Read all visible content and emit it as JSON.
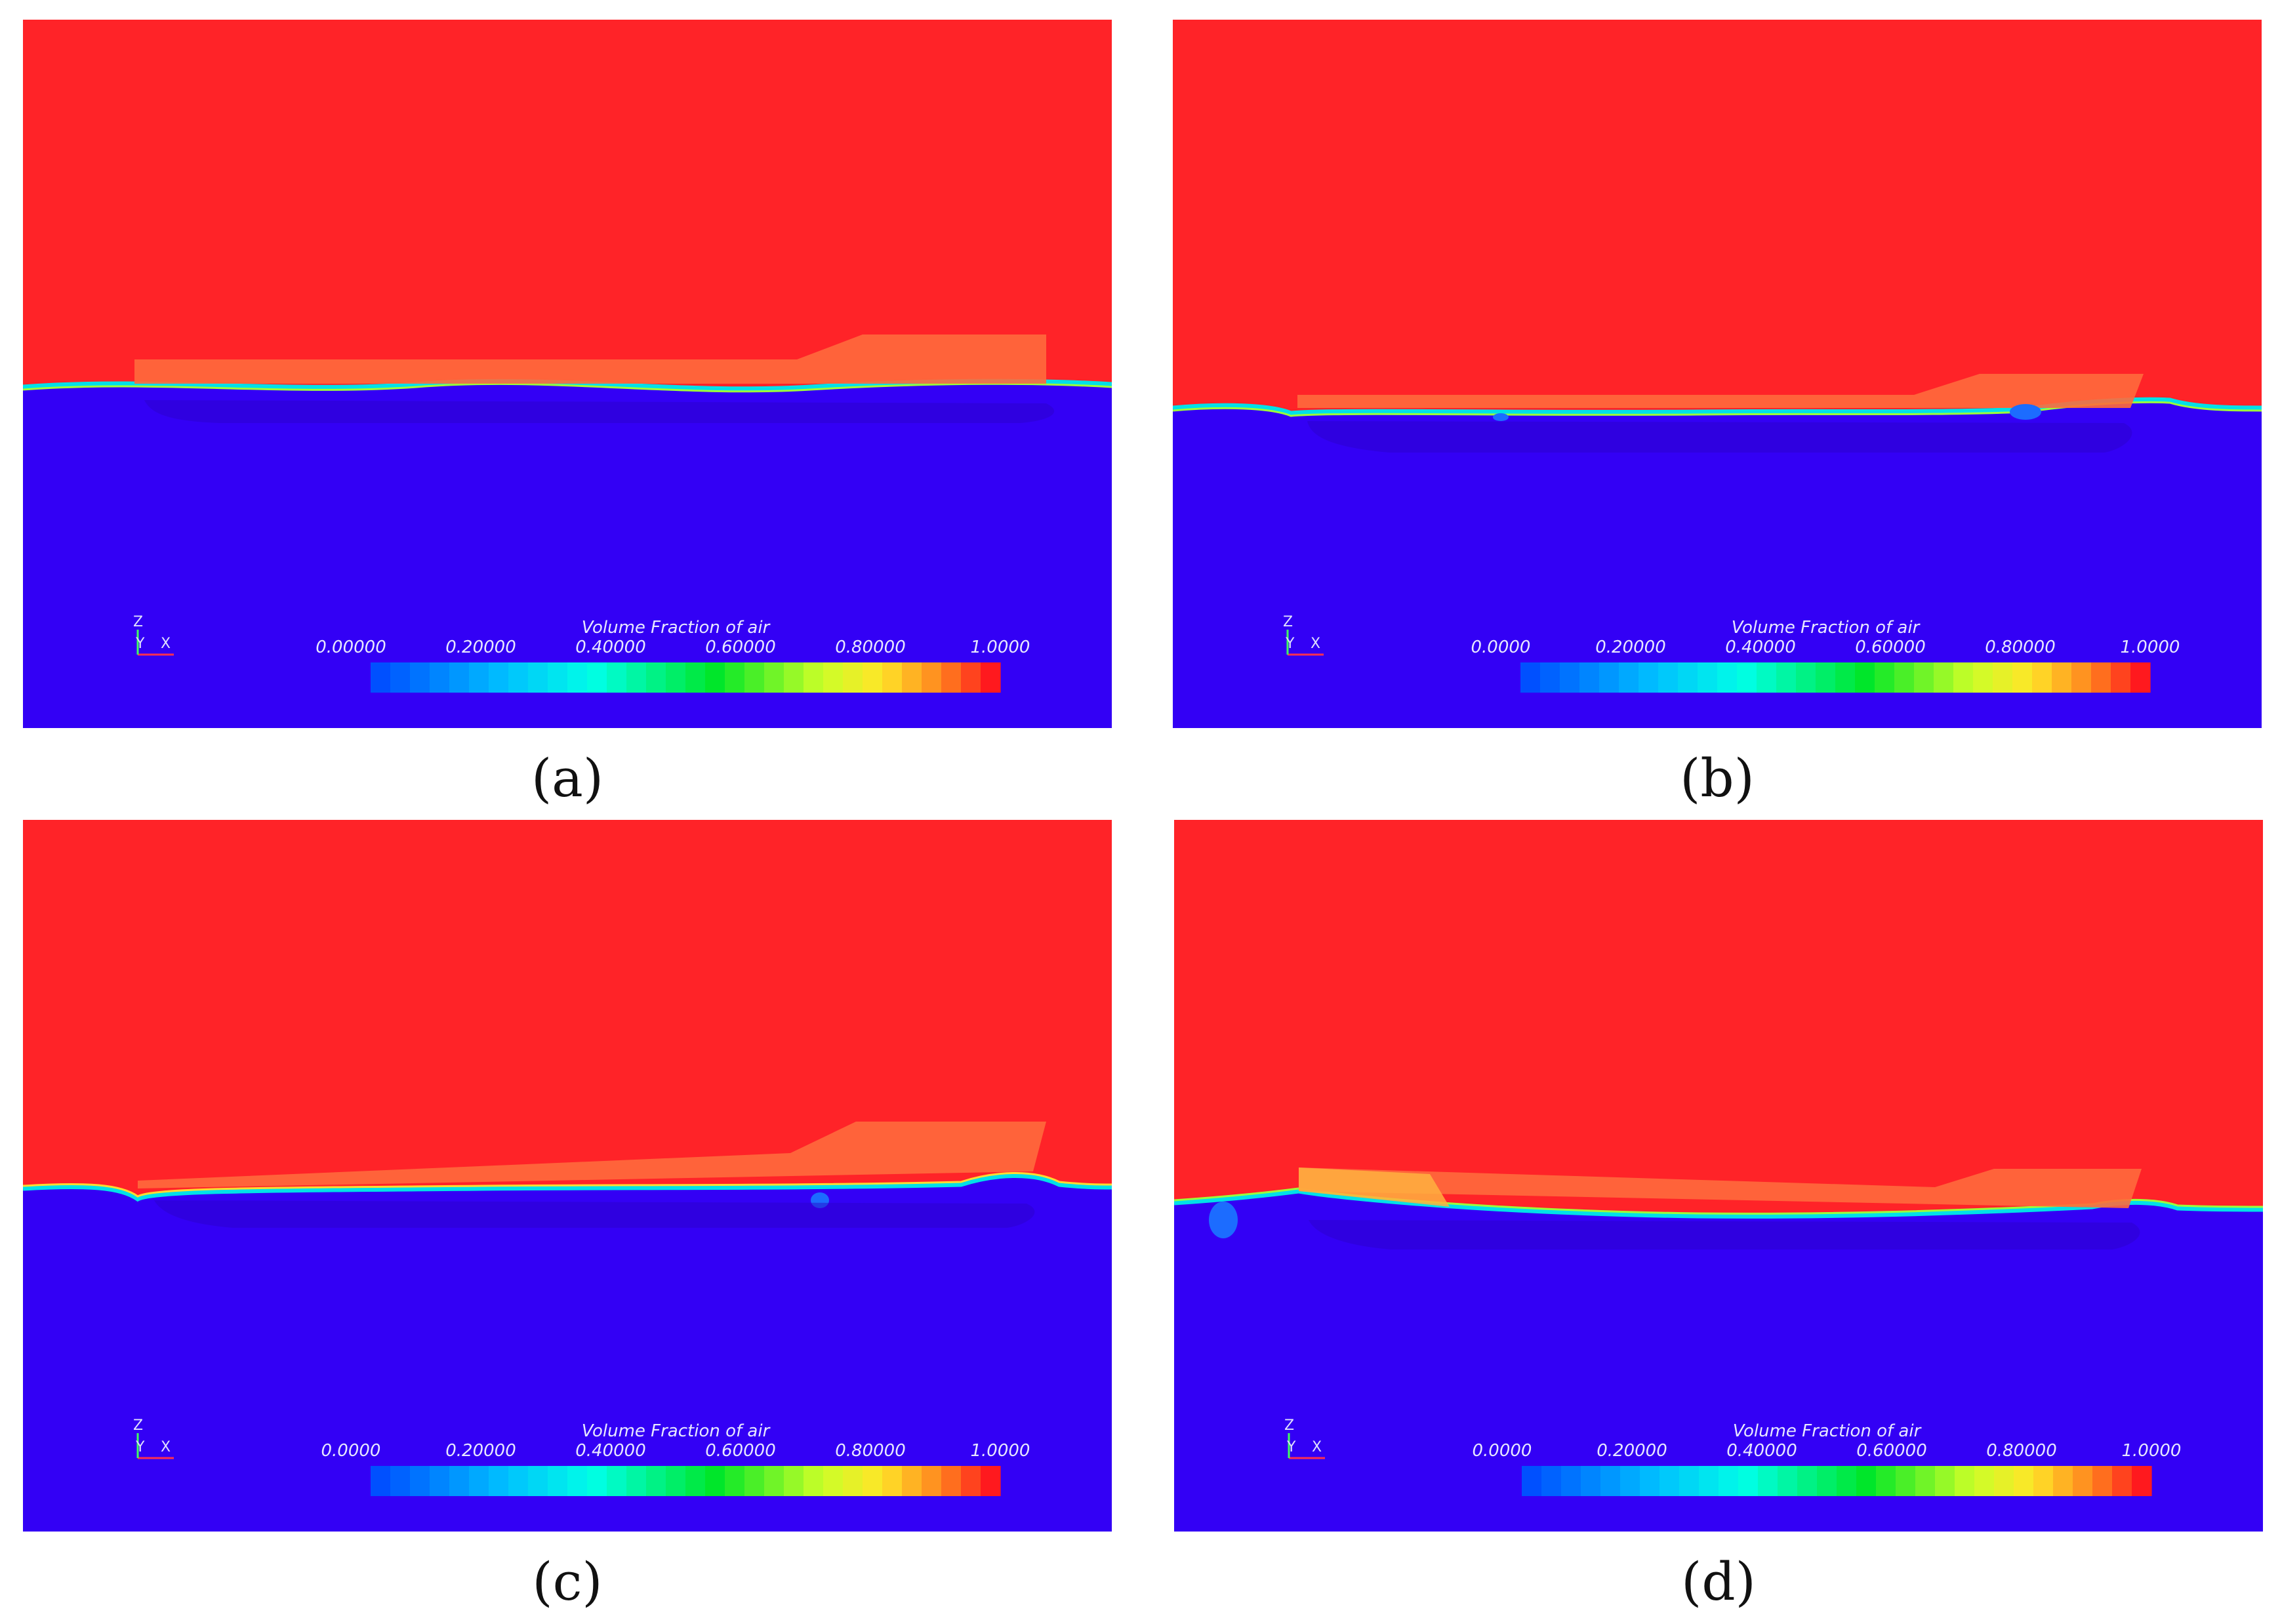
{
  "colors": {
    "air": "#ff2328",
    "water": "#3300f5",
    "hull": "#ff6a3c",
    "interface": "#00e0e8"
  },
  "axis_triad": {
    "z": "Z",
    "y": "Y",
    "x": "X"
  },
  "panels": [
    {
      "caption": "(a)",
      "legend_title": "Volume Fraction of air",
      "ticks": [
        "0.00000",
        "0.20000",
        "0.40000",
        "0.60000",
        "0.80000",
        "1.0000"
      ]
    },
    {
      "caption": "(b)",
      "legend_title": "Volume Fraction of air",
      "ticks": [
        "0.0000",
        "0.20000",
        "0.40000",
        "0.60000",
        "0.80000",
        "1.0000"
      ]
    },
    {
      "caption": "(c)",
      "legend_title": "Volume Fraction of air",
      "ticks": [
        "0.0000",
        "0.20000",
        "0.40000",
        "0.60000",
        "0.80000",
        "1.0000"
      ]
    },
    {
      "caption": "(d)",
      "legend_title": "Volume Fraction of air",
      "ticks": [
        "0.0000",
        "0.20000",
        "0.40000",
        "0.60000",
        "0.80000",
        "1.0000"
      ]
    }
  ]
}
